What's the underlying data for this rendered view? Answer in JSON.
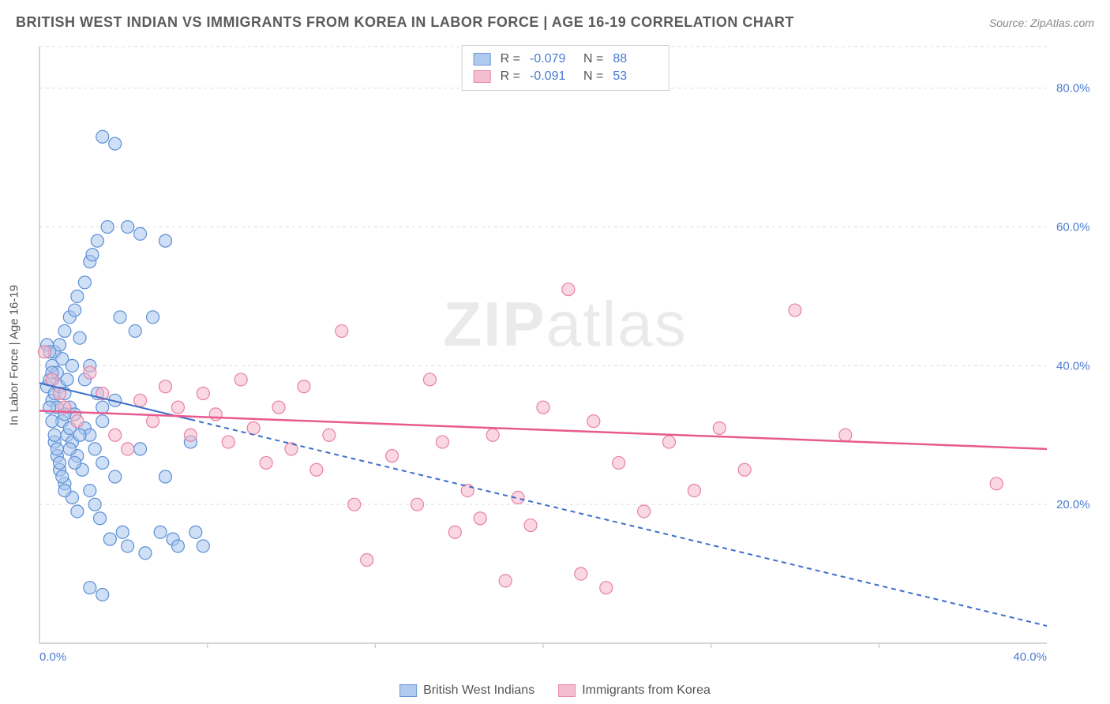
{
  "header": {
    "title": "BRITISH WEST INDIAN VS IMMIGRANTS FROM KOREA IN LABOR FORCE | AGE 16-19 CORRELATION CHART",
    "source": "Source: ZipAtlas.com"
  },
  "watermark": {
    "zip": "ZIP",
    "atlas": "atlas"
  },
  "chart": {
    "type": "scatter",
    "y_axis_label": "In Labor Force | Age 16-19",
    "x_range": [
      0,
      40
    ],
    "y_range": [
      0,
      86
    ],
    "x_ticks": [
      0,
      40
    ],
    "x_tick_labels": [
      "0.0%",
      "40.0%"
    ],
    "x_minor_ticks": [
      6.67,
      13.33,
      20,
      26.67,
      33.33
    ],
    "y_ticks": [
      20,
      40,
      60,
      80
    ],
    "y_tick_labels": [
      "20.0%",
      "40.0%",
      "60.0%",
      "80.0%"
    ],
    "background_color": "#ffffff",
    "grid_color": "#dddddd",
    "axis_color": "#c8c8c8",
    "series": [
      {
        "name": "British West Indians",
        "fill": "#a8c5ec",
        "stroke": "#5b8fd6",
        "fill_opacity": 0.55,
        "marker_radius": 8,
        "trend": {
          "x1": 0,
          "y1": 37.5,
          "x2": 40,
          "y2": 2.5,
          "dash_after_x": 6,
          "color": "#3b6fc8",
          "width": 2
        },
        "stats": {
          "R": "-0.079",
          "N": "88"
        },
        "points": [
          [
            0.3,
            37
          ],
          [
            0.4,
            38
          ],
          [
            0.5,
            35
          ],
          [
            0.5,
            40
          ],
          [
            0.6,
            36
          ],
          [
            0.6,
            42
          ],
          [
            0.7,
            34
          ],
          [
            0.7,
            39
          ],
          [
            0.8,
            37
          ],
          [
            0.8,
            43
          ],
          [
            0.9,
            32
          ],
          [
            0.9,
            41
          ],
          [
            1.0,
            36
          ],
          [
            1.0,
            45
          ],
          [
            1.1,
            30
          ],
          [
            1.1,
            38
          ],
          [
            1.2,
            34
          ],
          [
            1.2,
            47
          ],
          [
            1.3,
            29
          ],
          [
            1.3,
            40
          ],
          [
            1.4,
            33
          ],
          [
            1.4,
            48
          ],
          [
            1.5,
            50
          ],
          [
            1.5,
            27
          ],
          [
            1.6,
            44
          ],
          [
            1.7,
            25
          ],
          [
            1.8,
            52
          ],
          [
            1.8,
            31
          ],
          [
            2.0,
            55
          ],
          [
            2.0,
            22
          ],
          [
            2.1,
            56
          ],
          [
            2.2,
            20
          ],
          [
            2.3,
            58
          ],
          [
            2.4,
            18
          ],
          [
            2.5,
            73
          ],
          [
            2.5,
            26
          ],
          [
            2.7,
            60
          ],
          [
            2.8,
            15
          ],
          [
            3.0,
            72
          ],
          [
            3.0,
            24
          ],
          [
            3.2,
            47
          ],
          [
            3.3,
            16
          ],
          [
            3.5,
            60
          ],
          [
            3.5,
            14
          ],
          [
            3.8,
            45
          ],
          [
            4.0,
            59
          ],
          [
            4.0,
            28
          ],
          [
            4.2,
            13
          ],
          [
            4.5,
            47
          ],
          [
            4.8,
            16
          ],
          [
            5.0,
            58
          ],
          [
            5.0,
            24
          ],
          [
            5.3,
            15
          ],
          [
            5.5,
            14
          ],
          [
            6.0,
            29
          ],
          [
            6.2,
            16
          ],
          [
            6.5,
            14
          ],
          [
            1.0,
            33
          ],
          [
            1.2,
            31
          ],
          [
            0.5,
            39
          ],
          [
            0.6,
            29
          ],
          [
            0.7,
            27
          ],
          [
            0.8,
            25
          ],
          [
            1.0,
            23
          ],
          [
            1.3,
            21
          ],
          [
            1.5,
            19
          ],
          [
            2.0,
            30
          ],
          [
            2.2,
            28
          ],
          [
            2.5,
            32
          ],
          [
            3.0,
            35
          ],
          [
            0.4,
            34
          ],
          [
            0.5,
            32
          ],
          [
            0.6,
            30
          ],
          [
            0.7,
            28
          ],
          [
            0.8,
            26
          ],
          [
            0.9,
            24
          ],
          [
            1.0,
            22
          ],
          [
            1.2,
            28
          ],
          [
            1.4,
            26
          ],
          [
            1.6,
            30
          ],
          [
            2.0,
            8
          ],
          [
            2.5,
            7
          ],
          [
            1.8,
            38
          ],
          [
            2.0,
            40
          ],
          [
            2.3,
            36
          ],
          [
            2.5,
            34
          ],
          [
            0.3,
            43
          ],
          [
            0.4,
            42
          ]
        ]
      },
      {
        "name": "Immigrants from Korea",
        "fill": "#f5b8cb",
        "stroke": "#e87fa5",
        "fill_opacity": 0.55,
        "marker_radius": 8,
        "trend": {
          "x1": 0,
          "y1": 33.5,
          "x2": 40,
          "y2": 28,
          "dash_after_x": 40,
          "color": "#e85a8f",
          "width": 2.5
        },
        "stats": {
          "R": "-0.091",
          "N": "53"
        },
        "points": [
          [
            0.2,
            42
          ],
          [
            0.5,
            38
          ],
          [
            0.8,
            36
          ],
          [
            1.0,
            34
          ],
          [
            1.5,
            32
          ],
          [
            2.0,
            39
          ],
          [
            2.5,
            36
          ],
          [
            3.0,
            30
          ],
          [
            3.5,
            28
          ],
          [
            4.0,
            35
          ],
          [
            4.5,
            32
          ],
          [
            5.0,
            37
          ],
          [
            5.5,
            34
          ],
          [
            6.0,
            30
          ],
          [
            6.5,
            36
          ],
          [
            7.0,
            33
          ],
          [
            7.5,
            29
          ],
          [
            8.0,
            38
          ],
          [
            8.5,
            31
          ],
          [
            9.0,
            26
          ],
          [
            9.5,
            34
          ],
          [
            10.0,
            28
          ],
          [
            10.5,
            37
          ],
          [
            11.0,
            25
          ],
          [
            11.5,
            30
          ],
          [
            12.0,
            45
          ],
          [
            12.5,
            20
          ],
          [
            13.0,
            12
          ],
          [
            14.0,
            27
          ],
          [
            15.0,
            20
          ],
          [
            15.5,
            38
          ],
          [
            16.0,
            29
          ],
          [
            16.5,
            16
          ],
          [
            17.0,
            22
          ],
          [
            17.5,
            18
          ],
          [
            18.0,
            30
          ],
          [
            18.5,
            9
          ],
          [
            19.0,
            21
          ],
          [
            19.5,
            17
          ],
          [
            20.0,
            34
          ],
          [
            21.0,
            51
          ],
          [
            22.0,
            32
          ],
          [
            23.0,
            26
          ],
          [
            24.0,
            19
          ],
          [
            25.0,
            29
          ],
          [
            26.0,
            22
          ],
          [
            27.0,
            31
          ],
          [
            28.0,
            25
          ],
          [
            30.0,
            48
          ],
          [
            32.0,
            30
          ],
          [
            38.0,
            23
          ],
          [
            21.5,
            10
          ],
          [
            22.5,
            8
          ]
        ]
      }
    ],
    "stats_box": {
      "R_label": "R =",
      "N_label": "N ="
    },
    "legend_labels": [
      "British West Indians",
      "Immigrants from Korea"
    ]
  }
}
